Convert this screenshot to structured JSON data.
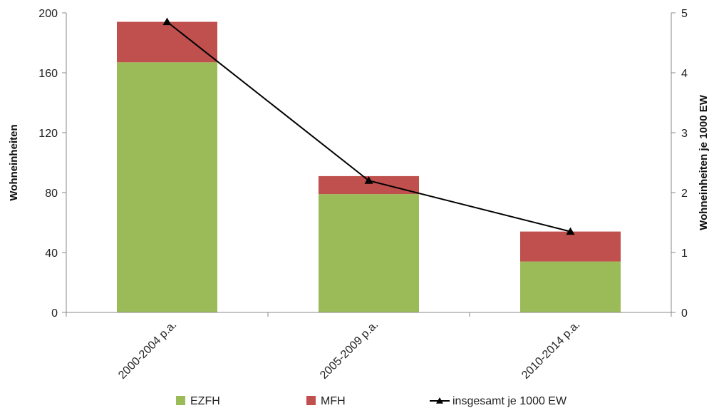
{
  "chart_data": {
    "type": "bar",
    "stacked": true,
    "categories": [
      "2000-2004 p.a.",
      "2005-2009 p.a.",
      "2010-2014 p.a."
    ],
    "series": [
      {
        "name": "EZFH",
        "type": "bar",
        "axis": "left",
        "color": "#9BBB59",
        "values": [
          167,
          79,
          34
        ]
      },
      {
        "name": "MFH",
        "type": "bar",
        "axis": "left",
        "color": "#C0504D",
        "values": [
          27,
          12,
          20
        ]
      },
      {
        "name": "insgesamt je 1000 EW",
        "type": "line",
        "axis": "right",
        "color": "#000000",
        "marker": "triangle",
        "values": [
          4.85,
          2.2,
          1.35
        ]
      }
    ],
    "ylabel": "Wohneinheiten",
    "y2label": "Wohneinheiten je 1000 EW",
    "ylim": [
      0,
      200
    ],
    "y2lim": [
      0,
      5
    ],
    "yticks": [
      "0",
      "40",
      "80",
      "120",
      "160",
      "200"
    ],
    "y2ticks": [
      "0",
      "1",
      "2",
      "3",
      "4",
      "5"
    ],
    "grid": false,
    "legend": "bottom"
  }
}
